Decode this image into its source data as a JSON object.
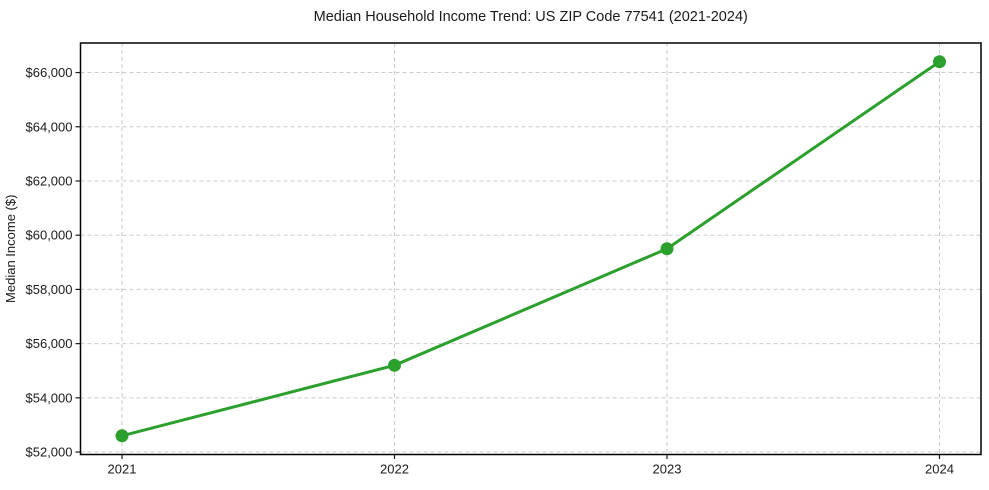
{
  "chart_data": {
    "type": "line",
    "title": "Median Household Income Trend: US ZIP Code 77541 (2021-2024)",
    "xlabel": "",
    "ylabel": "Median Income ($)",
    "x": [
      "2021",
      "2022",
      "2023",
      "2024"
    ],
    "values": [
      52600,
      55200,
      59500,
      66400
    ],
    "ylim": [
      51910,
      67090
    ],
    "yticks": [
      52000,
      54000,
      56000,
      58000,
      60000,
      62000,
      64000,
      66000
    ],
    "ytick_labels": [
      "$52,000",
      "$54,000",
      "$56,000",
      "$58,000",
      "$60,000",
      "$62,000",
      "$64,000",
      "$66,000"
    ],
    "grid": true,
    "grid_style": "dashed",
    "legend_position": "none",
    "line_color": "#2ca02c",
    "marker": "circle",
    "grid_color": "#cbcbcb",
    "background_color": "#ffffff"
  }
}
